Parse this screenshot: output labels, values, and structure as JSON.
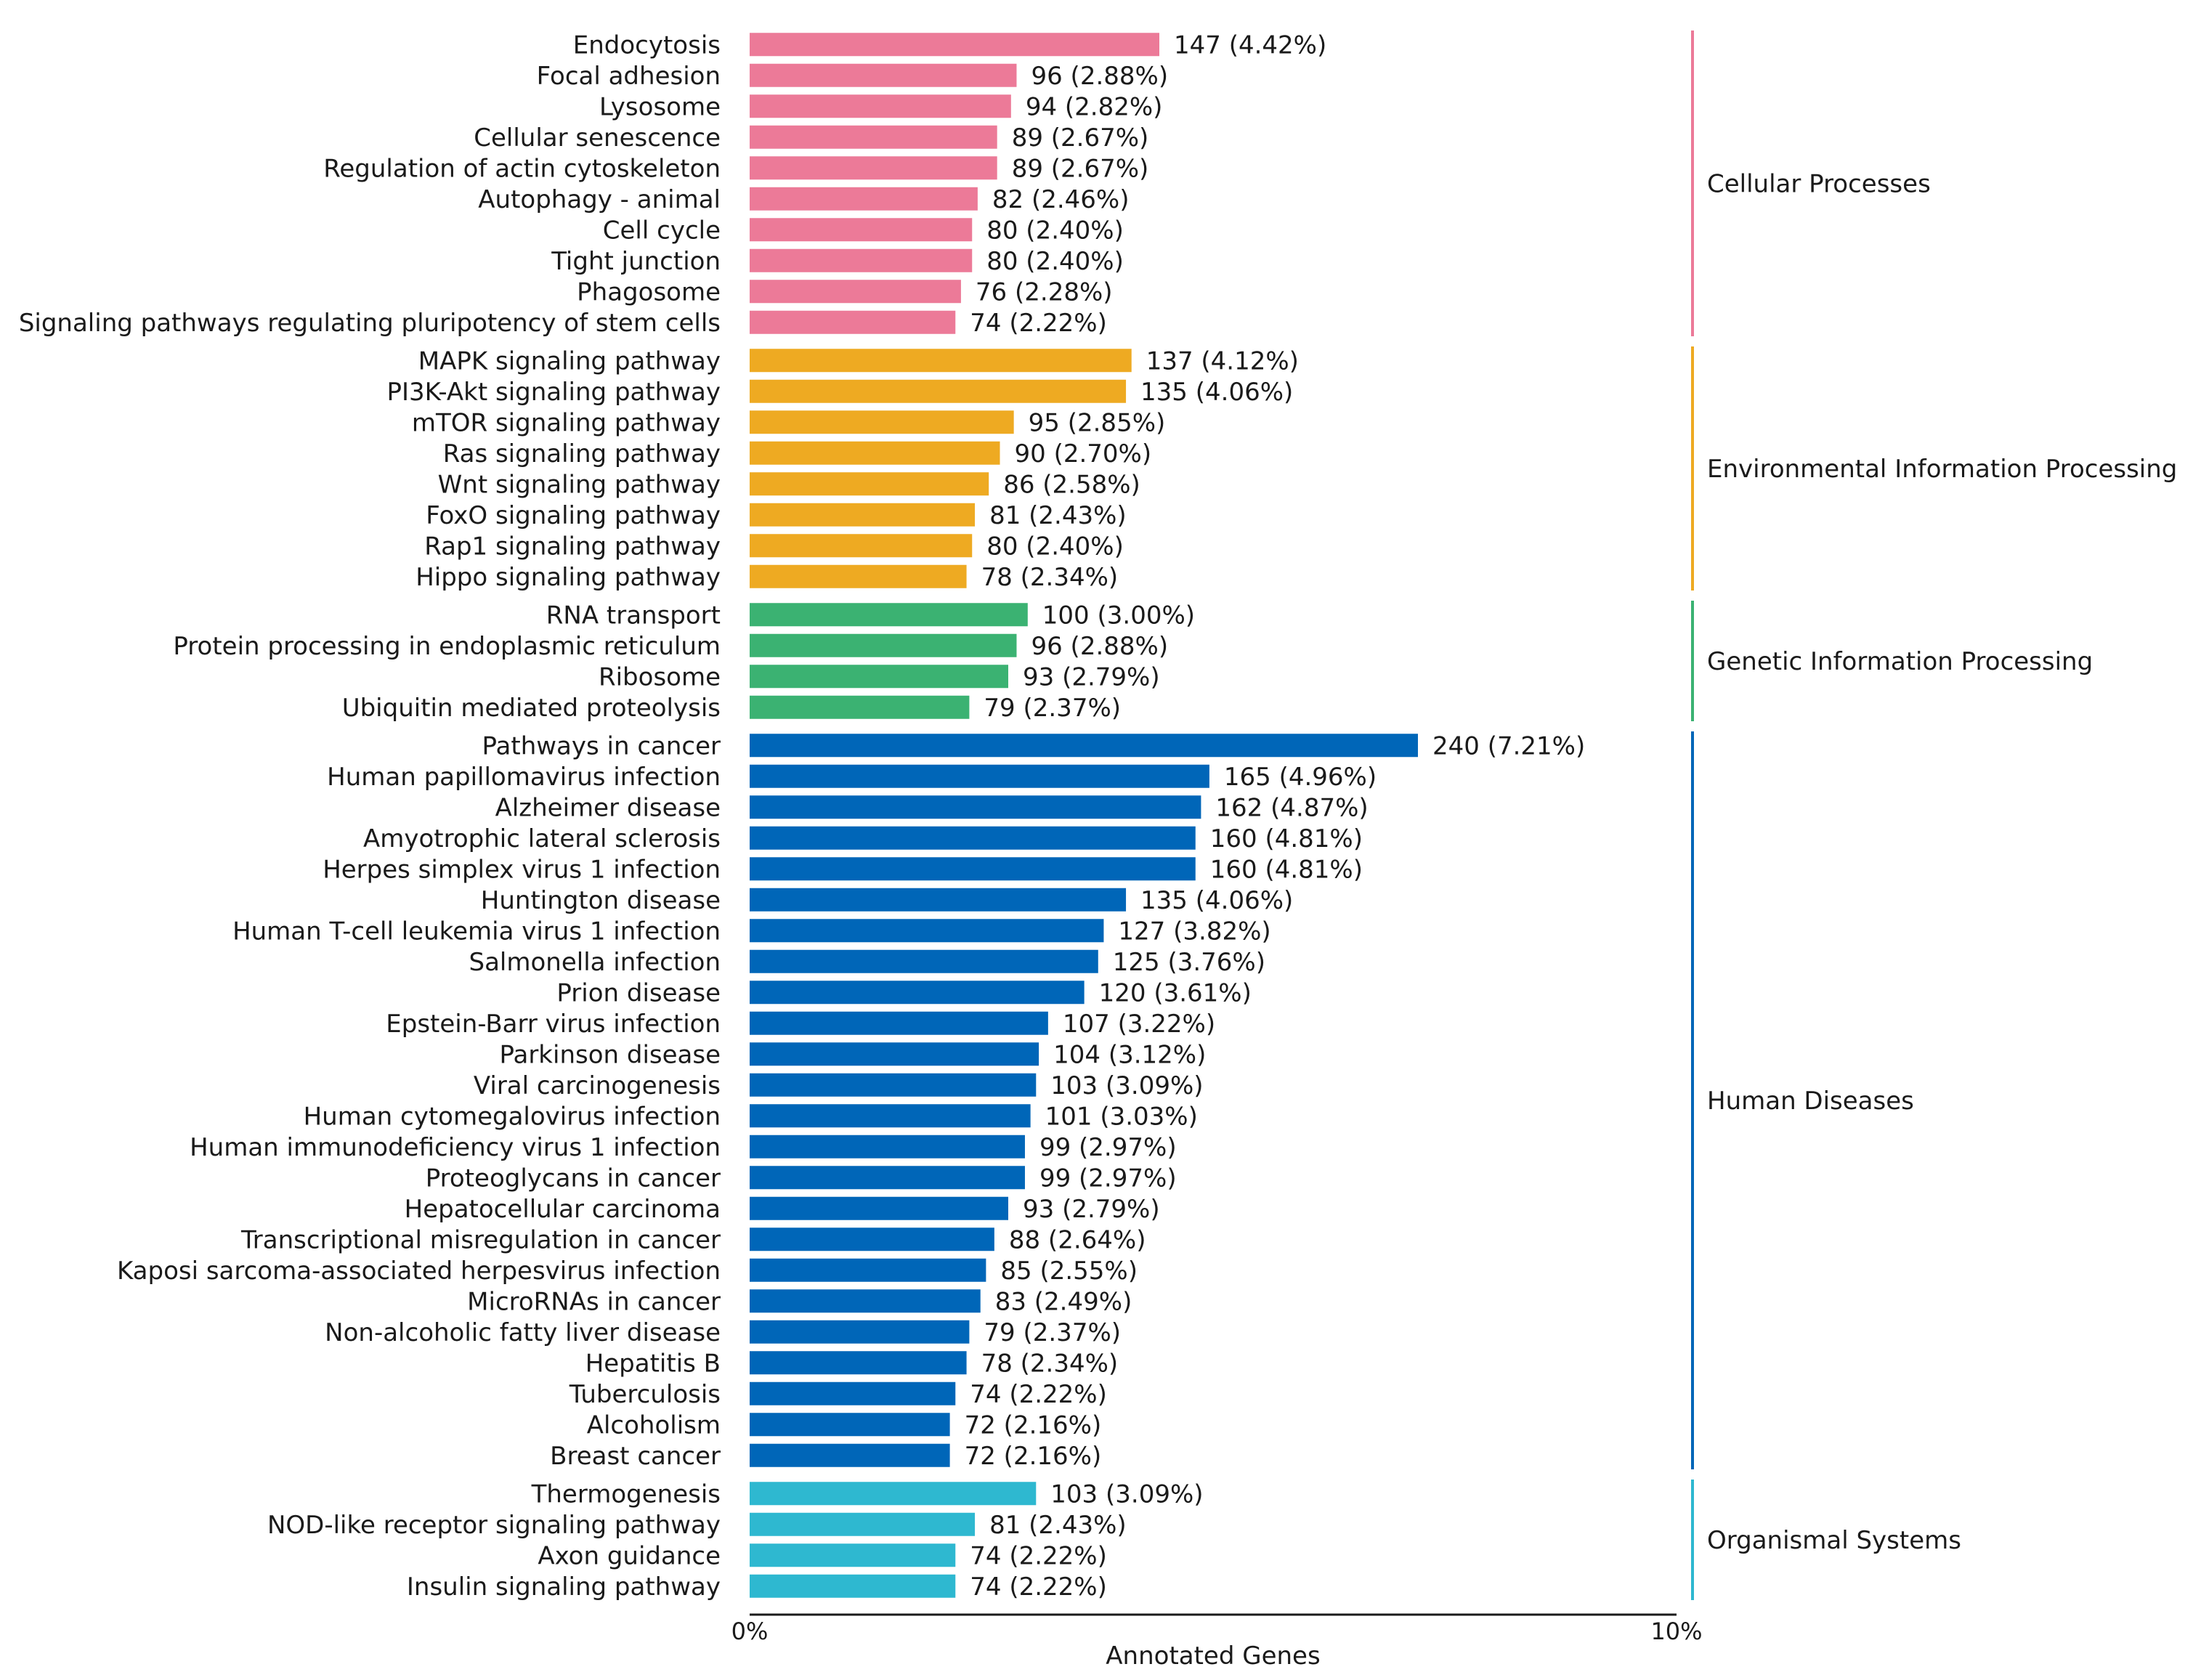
{
  "chart_data": {
    "type": "bar",
    "orientation": "horizontal",
    "title": "",
    "xlabel": "Annotated Genes",
    "ylabel": "",
    "xlim": [
      0,
      10
    ],
    "x_ticks": [
      "0%",
      "10%"
    ],
    "grid": false,
    "groups": [
      {
        "name": "Cellular Processes",
        "color": "#ec7a98",
        "items": [
          {
            "label": "Endocytosis",
            "value": 147,
            "text": "147 (4.42%)",
            "percent": 4.42
          },
          {
            "label": "Focal adhesion",
            "value": 96,
            "text": "96 (2.88%)",
            "percent": 2.88
          },
          {
            "label": "Lysosome",
            "value": 94,
            "text": "94 (2.82%)",
            "percent": 2.82
          },
          {
            "label": "Cellular senescence",
            "value": 89,
            "text": "89 (2.67%)",
            "percent": 2.67
          },
          {
            "label": "Regulation of actin cytoskeleton",
            "value": 89,
            "text": "89 (2.67%)",
            "percent": 2.67
          },
          {
            "label": "Autophagy - animal",
            "value": 82,
            "text": "82 (2.46%)",
            "percent": 2.46
          },
          {
            "label": "Cell cycle",
            "value": 80,
            "text": "80 (2.40%)",
            "percent": 2.4
          },
          {
            "label": "Tight junction",
            "value": 80,
            "text": "80 (2.40%)",
            "percent": 2.4
          },
          {
            "label": "Phagosome",
            "value": 76,
            "text": "76 (2.28%)",
            "percent": 2.28
          },
          {
            "label": "Signaling pathways regulating pluripotency of stem cells",
            "value": 74,
            "text": "74 (2.22%)",
            "percent": 2.22
          }
        ]
      },
      {
        "name": "Environmental Information Processing",
        "color": "#eeaa22",
        "items": [
          {
            "label": "MAPK signaling pathway",
            "value": 137,
            "text": "137 (4.12%)",
            "percent": 4.12
          },
          {
            "label": "PI3K-Akt signaling pathway",
            "value": 135,
            "text": "135 (4.06%)",
            "percent": 4.06
          },
          {
            "label": "mTOR signaling pathway",
            "value": 95,
            "text": "95 (2.85%)",
            "percent": 2.85
          },
          {
            "label": "Ras signaling pathway",
            "value": 90,
            "text": "90 (2.70%)",
            "percent": 2.7
          },
          {
            "label": "Wnt signaling pathway",
            "value": 86,
            "text": "86 (2.58%)",
            "percent": 2.58
          },
          {
            "label": "FoxO signaling pathway",
            "value": 81,
            "text": "81 (2.43%)",
            "percent": 2.43
          },
          {
            "label": "Rap1 signaling pathway",
            "value": 80,
            "text": "80 (2.40%)",
            "percent": 2.4
          },
          {
            "label": "Hippo signaling pathway",
            "value": 78,
            "text": "78 (2.34%)",
            "percent": 2.34
          }
        ]
      },
      {
        "name": "Genetic Information Processing",
        "color": "#3bb272",
        "items": [
          {
            "label": "RNA transport",
            "value": 100,
            "text": "100 (3.00%)",
            "percent": 3.0
          },
          {
            "label": "Protein processing in endoplasmic reticulum",
            "value": 96,
            "text": "96 (2.88%)",
            "percent": 2.88
          },
          {
            "label": "Ribosome",
            "value": 93,
            "text": "93 (2.79%)",
            "percent": 2.79
          },
          {
            "label": "Ubiquitin mediated proteolysis",
            "value": 79,
            "text": "79 (2.37%)",
            "percent": 2.37
          }
        ]
      },
      {
        "name": "Human Diseases",
        "color": "#0066b8",
        "items": [
          {
            "label": "Pathways in cancer",
            "value": 240,
            "text": "240 (7.21%)",
            "percent": 7.21
          },
          {
            "label": "Human papillomavirus infection",
            "value": 165,
            "text": "165 (4.96%)",
            "percent": 4.96
          },
          {
            "label": "Alzheimer disease",
            "value": 162,
            "text": "162 (4.87%)",
            "percent": 4.87
          },
          {
            "label": "Amyotrophic lateral sclerosis",
            "value": 160,
            "text": "160 (4.81%)",
            "percent": 4.81
          },
          {
            "label": "Herpes simplex virus 1 infection",
            "value": 160,
            "text": "160 (4.81%)",
            "percent": 4.81
          },
          {
            "label": "Huntington disease",
            "value": 135,
            "text": "135 (4.06%)",
            "percent": 4.06
          },
          {
            "label": "Human T-cell leukemia virus 1 infection",
            "value": 127,
            "text": "127 (3.82%)",
            "percent": 3.82
          },
          {
            "label": "Salmonella infection",
            "value": 125,
            "text": "125 (3.76%)",
            "percent": 3.76
          },
          {
            "label": "Prion disease",
            "value": 120,
            "text": "120 (3.61%)",
            "percent": 3.61
          },
          {
            "label": "Epstein-Barr virus infection",
            "value": 107,
            "text": "107 (3.22%)",
            "percent": 3.22
          },
          {
            "label": "Parkinson disease",
            "value": 104,
            "text": "104 (3.12%)",
            "percent": 3.12
          },
          {
            "label": "Viral carcinogenesis",
            "value": 103,
            "text": "103 (3.09%)",
            "percent": 3.09
          },
          {
            "label": "Human cytomegalovirus infection",
            "value": 101,
            "text": "101 (3.03%)",
            "percent": 3.03
          },
          {
            "label": "Human immunodeficiency virus 1 infection",
            "value": 99,
            "text": "99 (2.97%)",
            "percent": 2.97
          },
          {
            "label": "Proteoglycans in cancer",
            "value": 99,
            "text": "99 (2.97%)",
            "percent": 2.97
          },
          {
            "label": "Hepatocellular carcinoma",
            "value": 93,
            "text": "93 (2.79%)",
            "percent": 2.79
          },
          {
            "label": "Transcriptional misregulation in cancer",
            "value": 88,
            "text": "88 (2.64%)",
            "percent": 2.64
          },
          {
            "label": "Kaposi sarcoma-associated herpesvirus infection",
            "value": 85,
            "text": "85 (2.55%)",
            "percent": 2.55
          },
          {
            "label": "MicroRNAs in cancer",
            "value": 83,
            "text": "83 (2.49%)",
            "percent": 2.49
          },
          {
            "label": "Non-alcoholic fatty liver disease",
            "value": 79,
            "text": "79 (2.37%)",
            "percent": 2.37
          },
          {
            "label": "Hepatitis B",
            "value": 78,
            "text": "78 (2.34%)",
            "percent": 2.34
          },
          {
            "label": "Tuberculosis",
            "value": 74,
            "text": "74 (2.22%)",
            "percent": 2.22
          },
          {
            "label": "Alcoholism",
            "value": 72,
            "text": "72 (2.16%)",
            "percent": 2.16
          },
          {
            "label": "Breast cancer",
            "value": 72,
            "text": "72 (2.16%)",
            "percent": 2.16
          }
        ]
      },
      {
        "name": "Organismal Systems",
        "color": "#2eb8d0",
        "items": [
          {
            "label": "Thermogenesis",
            "value": 103,
            "text": "103 (3.09%)",
            "percent": 3.09
          },
          {
            "label": "NOD-like receptor signaling pathway",
            "value": 81,
            "text": "81 (2.43%)",
            "percent": 2.43
          },
          {
            "label": "Axon guidance",
            "value": 74,
            "text": "74 (2.22%)",
            "percent": 2.22
          },
          {
            "label": "Insulin signaling pathway",
            "value": 74,
            "text": "74 (2.22%)",
            "percent": 2.22
          }
        ]
      }
    ]
  }
}
